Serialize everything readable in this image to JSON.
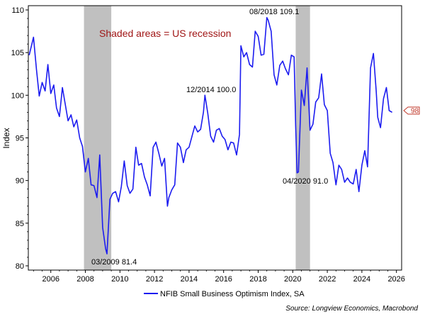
{
  "chart_data": {
    "type": "line",
    "title": "",
    "xlabel": "",
    "ylabel": "Index",
    "ylim": [
      79.5,
      110.5
    ],
    "xlim": [
      2004.7,
      2026.3
    ],
    "x_ticks": [
      2006,
      2008,
      2010,
      2012,
      2014,
      2016,
      2018,
      2020,
      2022,
      2024,
      2026
    ],
    "x_tick_labels": [
      "2006",
      "2008",
      "2010",
      "2012",
      "2014",
      "2016",
      "2018",
      "2020",
      "2022",
      "2024",
      "2026"
    ],
    "y_ticks": [
      80,
      85,
      90,
      95,
      100,
      105,
      110
    ],
    "y_tick_labels": [
      "80",
      "85",
      "90",
      "95",
      "100",
      "105",
      "110"
    ],
    "grid": false,
    "recessions": [
      {
        "start": 2007.92,
        "end": 2009.5
      },
      {
        "start": 2020.17,
        "end": 2021.0
      }
    ],
    "recession_note": "Shaded areas = US recession",
    "recession_color": "#c0c0c0",
    "series": [
      {
        "name": "NFIB Small Business Optimism Index, SA",
        "color": "#1c1cf0",
        "x": [
          2004.75,
          2005.0,
          2005.17,
          2005.33,
          2005.5,
          2005.67,
          2005.83,
          2006.0,
          2006.17,
          2006.33,
          2006.5,
          2006.67,
          2006.83,
          2007.0,
          2007.17,
          2007.33,
          2007.5,
          2007.67,
          2007.83,
          2008.0,
          2008.17,
          2008.33,
          2008.5,
          2008.67,
          2008.83,
          2009.0,
          2009.17,
          2009.25,
          2009.42,
          2009.58,
          2009.75,
          2009.92,
          2010.08,
          2010.25,
          2010.42,
          2010.58,
          2010.75,
          2010.92,
          2011.08,
          2011.25,
          2011.42,
          2011.58,
          2011.75,
          2011.92,
          2012.08,
          2012.25,
          2012.42,
          2012.58,
          2012.75,
          2012.83,
          2013.0,
          2013.17,
          2013.33,
          2013.5,
          2013.67,
          2013.83,
          2014.0,
          2014.17,
          2014.33,
          2014.5,
          2014.67,
          2014.83,
          2014.92,
          2015.08,
          2015.25,
          2015.42,
          2015.58,
          2015.75,
          2015.92,
          2016.08,
          2016.25,
          2016.42,
          2016.58,
          2016.75,
          2016.92,
          2017.0,
          2017.17,
          2017.33,
          2017.5,
          2017.67,
          2017.83,
          2018.0,
          2018.17,
          2018.33,
          2018.5,
          2018.58,
          2018.75,
          2018.92,
          2019.08,
          2019.25,
          2019.42,
          2019.58,
          2019.75,
          2019.92,
          2020.08,
          2020.17,
          2020.25,
          2020.33,
          2020.5,
          2020.67,
          2020.83,
          2021.0,
          2021.17,
          2021.33,
          2021.5,
          2021.67,
          2021.83,
          2022.0,
          2022.17,
          2022.33,
          2022.5,
          2022.67,
          2022.83,
          2023.0,
          2023.17,
          2023.33,
          2023.5,
          2023.67,
          2023.83,
          2024.0,
          2024.17,
          2024.33,
          2024.5,
          2024.67,
          2024.83,
          2024.92,
          2025.08,
          2025.25,
          2025.42,
          2025.58,
          2025.75
        ],
        "values": [
          104.7,
          106.8,
          103.0,
          99.9,
          101.5,
          100.5,
          103.6,
          100.2,
          101.2,
          98.5,
          97.5,
          100.9,
          99.0,
          97.0,
          97.7,
          96.3,
          97.1,
          95.0,
          94.0,
          91.0,
          92.6,
          89.5,
          89.4,
          88.0,
          93.0,
          84.5,
          82.0,
          81.4,
          87.8,
          88.5,
          88.7,
          87.5,
          89.3,
          92.3,
          89.4,
          88.5,
          89.0,
          93.9,
          91.8,
          92.0,
          90.4,
          89.5,
          88.2,
          93.9,
          94.5,
          93.2,
          91.7,
          92.6,
          87.0,
          88.0,
          88.9,
          89.5,
          94.4,
          93.9,
          92.1,
          93.6,
          93.9,
          95.2,
          96.4,
          95.7,
          96.0,
          98.0,
          100.0,
          97.9,
          95.2,
          94.5,
          95.9,
          96.1,
          95.2,
          94.8,
          93.6,
          94.5,
          94.4,
          93.0,
          95.4,
          105.8,
          104.5,
          105.0,
          103.6,
          103.3,
          107.5,
          106.9,
          104.7,
          104.8,
          109.1,
          108.8,
          107.5,
          102.4,
          101.2,
          103.5,
          104.0,
          103.1,
          102.4,
          104.7,
          104.5,
          96.4,
          90.9,
          91.0,
          100.6,
          98.8,
          103.2,
          95.9,
          96.6,
          99.2,
          99.7,
          102.5,
          98.9,
          98.2,
          93.2,
          92.1,
          89.5,
          91.8,
          91.3,
          89.8,
          90.3,
          89.8,
          89.6,
          91.3,
          88.7,
          91.8,
          93.5,
          91.6,
          103.2,
          104.9,
          100.5,
          97.4,
          96.2,
          99.6,
          100.9,
          98.2,
          98.0
        ],
        "line_width": 1.6
      }
    ],
    "annotations": [
      {
        "text": "03/2009 81.4"
      },
      {
        "text": "12/2014 100.0"
      },
      {
        "text": "08/2018 109.1"
      },
      {
        "text": "04/2020 91.0"
      }
    ],
    "last_value_badge": {
      "text": "98",
      "value": 98,
      "color": "#c0392b"
    },
    "legend": {
      "label": "NFIB Small Business Optimism Index, SA",
      "placement": "bottom-center"
    },
    "source": "Source: Longview Economics, Macrobond",
    "note_color": "#a01616"
  }
}
